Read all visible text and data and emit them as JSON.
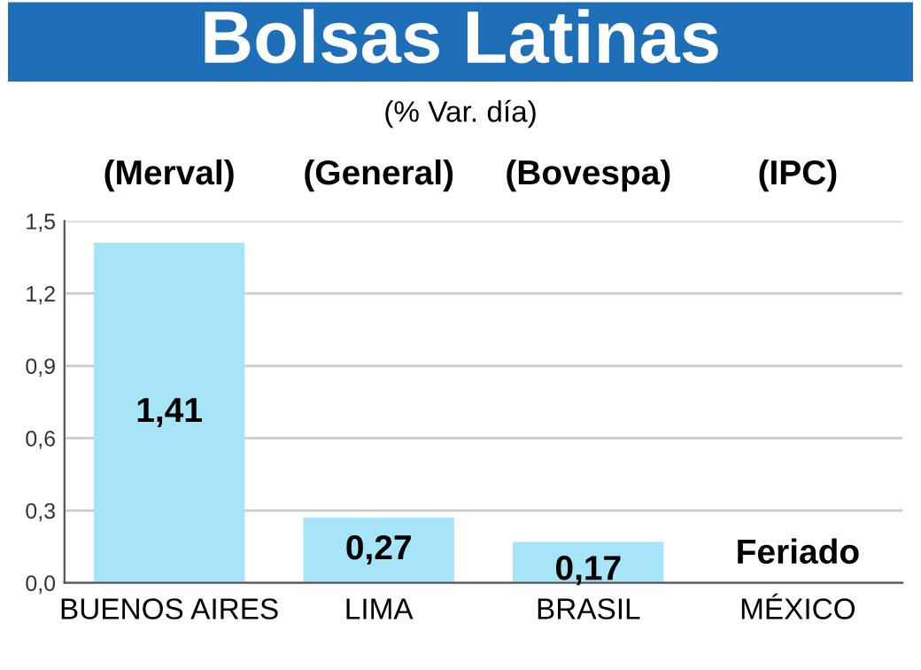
{
  "chart_data": {
    "type": "bar",
    "title": "Bolsas Latinas",
    "subtitle": "(% Var. día)",
    "categories": [
      "BUENOS AIRES",
      "LIMA",
      "BRASIL",
      "MÉXICO"
    ],
    "values": [
      1.41,
      0.27,
      0.17,
      null
    ],
    "value_labels": [
      "1,41",
      "0,27",
      "0,17",
      null
    ],
    "color": "#a6e4f8",
    "ylim": [
      0,
      1.5
    ],
    "yticks": [
      {
        "value": 0,
        "label": "0,0"
      },
      {
        "value": 0.3,
        "label": "0,3"
      },
      {
        "value": 0.6,
        "label": "0,6"
      },
      {
        "value": 0.9,
        "label": "0,9"
      },
      {
        "value": 1.2,
        "label": "1,2"
      },
      {
        "value": 1.5,
        "label": "1,5"
      }
    ],
    "grid": "y",
    "annotations": [
      "(Merval)",
      "(General)",
      "(Bovespa)",
      "(IPC)",
      "Feriado"
    ]
  }
}
